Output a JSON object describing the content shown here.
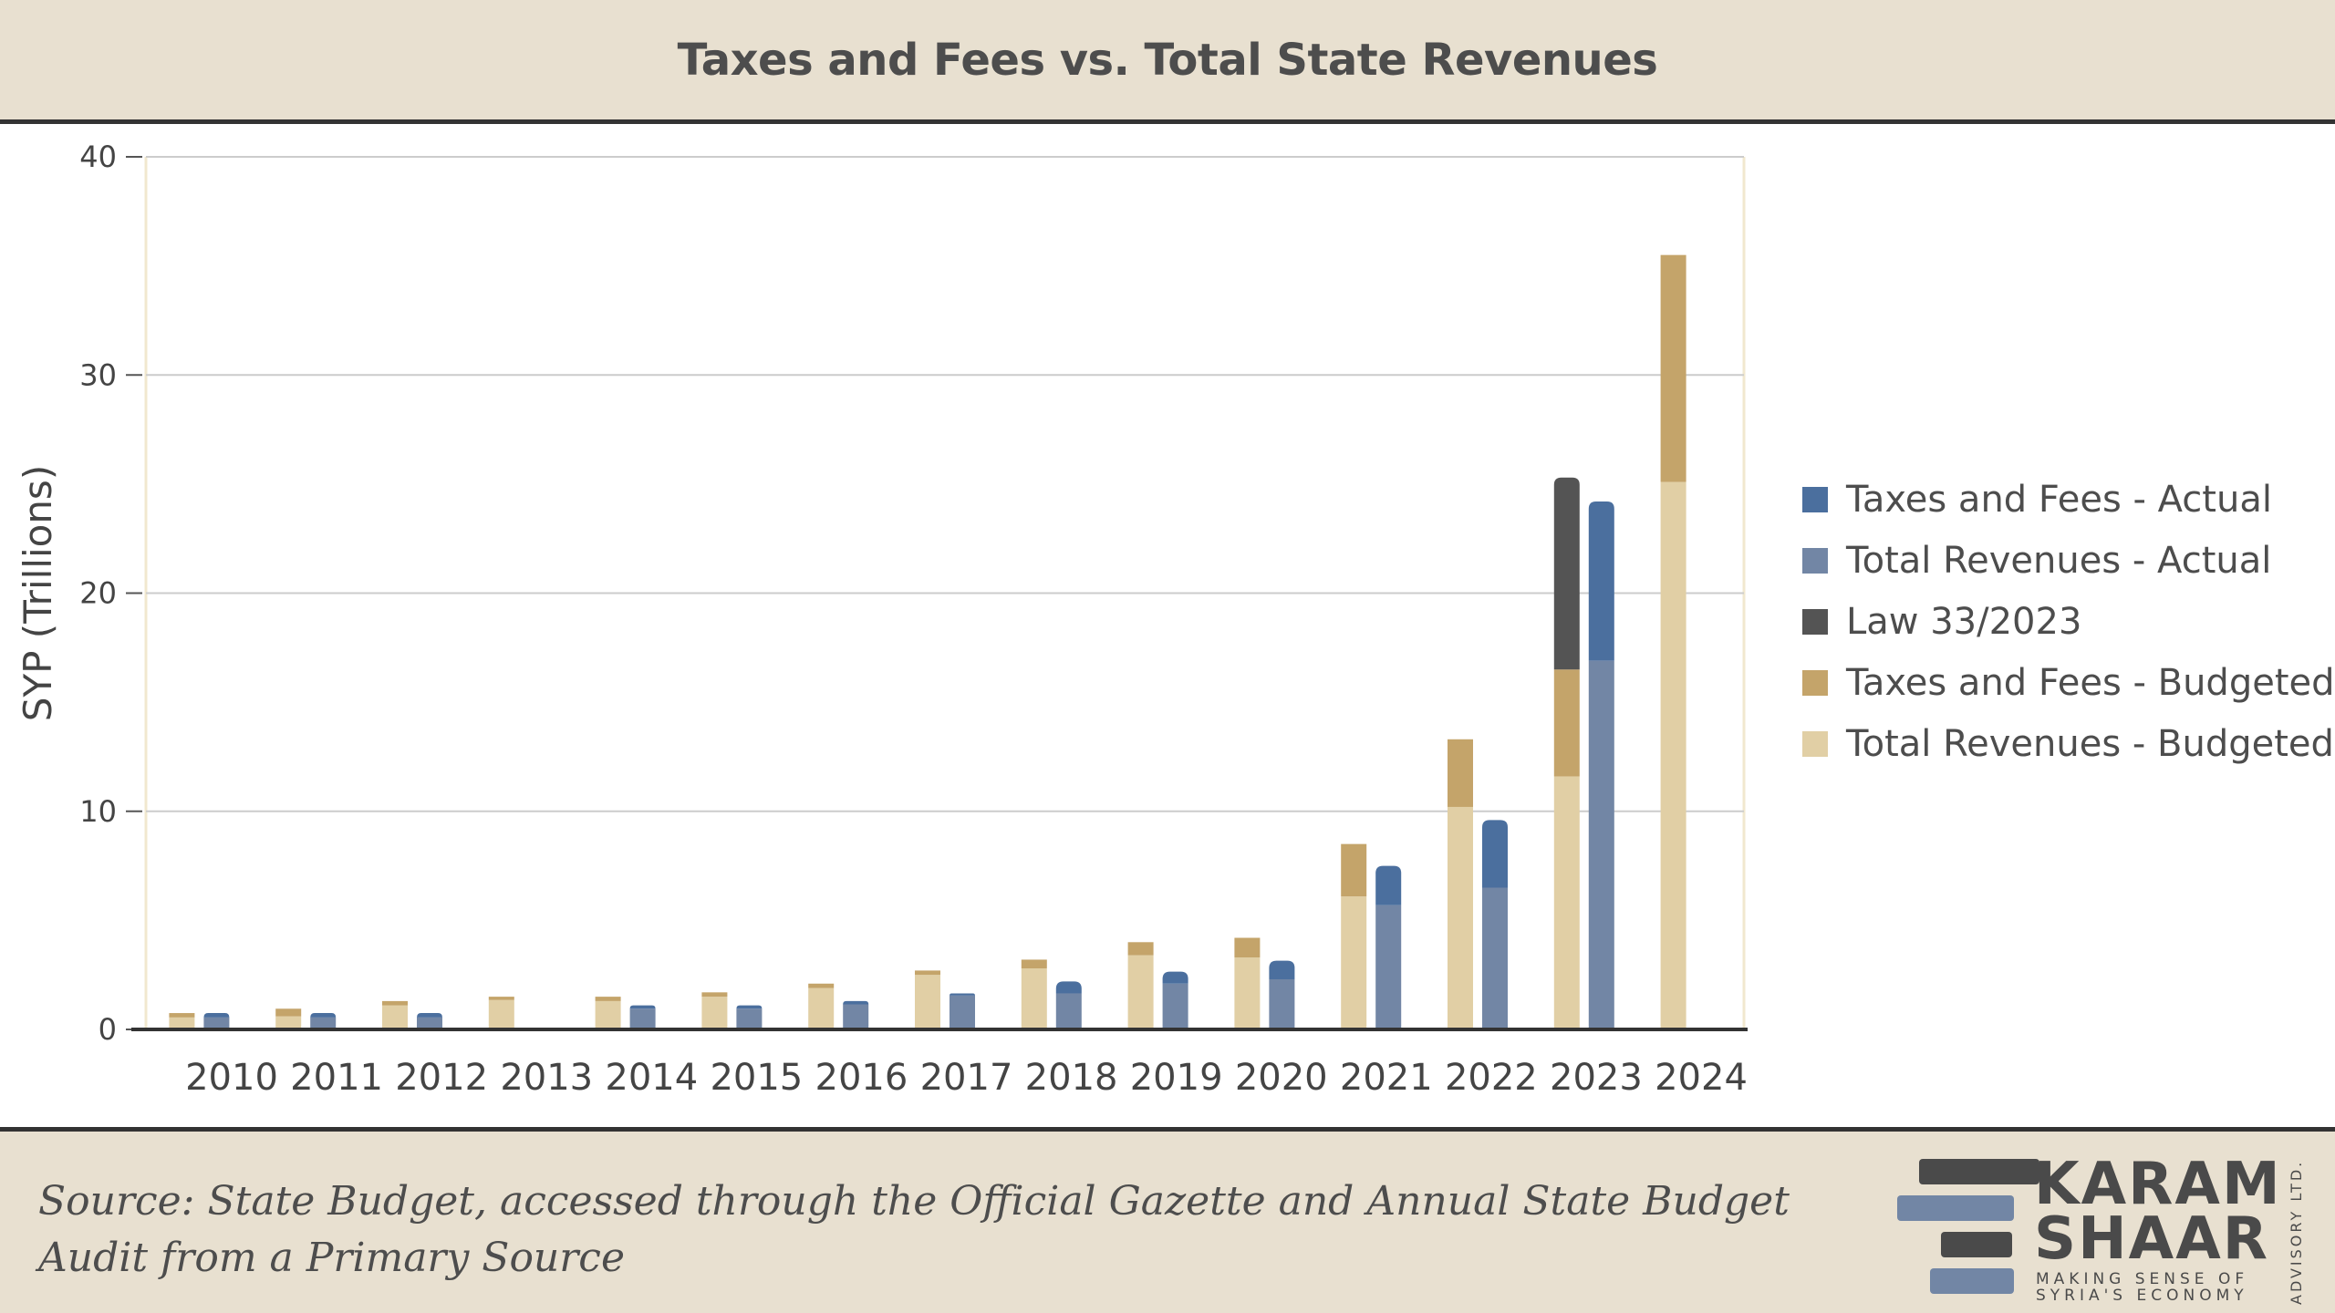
{
  "chart_data": {
    "type": "bar",
    "title": "Taxes and Fees vs. Total State Revenues",
    "ylabel": "SYP (Trillions)",
    "xlabel": "",
    "ylim": [
      0,
      40
    ],
    "yticks": [
      0,
      10,
      20,
      30,
      40
    ],
    "grid": true,
    "legend_position": "right",
    "categories": [
      "2010",
      "2011",
      "2012",
      "2013",
      "2014",
      "2015",
      "2016",
      "2017",
      "2018",
      "2019",
      "2020",
      "2021",
      "2022",
      "2023",
      "2024"
    ],
    "budgeted": {
      "total_revenues": [
        0.55,
        0.6,
        1.1,
        1.35,
        1.3,
        1.5,
        1.9,
        2.5,
        2.8,
        3.4,
        3.3,
        6.1,
        10.2,
        11.6,
        25.1
      ],
      "taxes_and_fees": [
        0.2,
        0.35,
        0.2,
        0.15,
        0.2,
        0.2,
        0.2,
        0.2,
        0.4,
        0.6,
        0.9,
        2.4,
        3.1,
        4.9,
        10.4
      ],
      "law_33_2023": [
        0,
        0,
        0,
        0,
        0,
        0,
        0,
        0,
        0,
        0,
        0,
        0,
        0,
        8.8,
        0
      ]
    },
    "actual": {
      "total_revenues": [
        0.55,
        0.55,
        0.55,
        null,
        0.95,
        0.95,
        1.15,
        1.55,
        1.65,
        2.1,
        2.3,
        5.7,
        6.5,
        16.9,
        null
      ],
      "taxes_and_fees": [
        0.2,
        0.2,
        0.2,
        null,
        0.15,
        0.15,
        0.15,
        0.1,
        0.55,
        0.55,
        0.85,
        1.8,
        3.1,
        7.3,
        null
      ]
    },
    "series": [
      {
        "name": "Taxes and Fees - Actual",
        "color": "#4b6f9e"
      },
      {
        "name": "Total Revenues - Actual",
        "color": "#7286a5"
      },
      {
        "name": "Law 33/2023",
        "color": "#545454"
      },
      {
        "name": "Taxes and Fees - Budgeted",
        "color": "#c4a46a"
      },
      {
        "name": "Total Revenues - Budgeted",
        "color": "#e1cfa5"
      }
    ]
  },
  "footer": {
    "source": "Source: State Budget, accessed through the Official Gazette and Annual State Budget Audit from a Primary Source"
  },
  "logo": {
    "line1": "KARAM",
    "line2": "SHAAR",
    "tagline1": "MAKING SENSE OF",
    "tagline2": "SYRIA'S ECONOMY",
    "vertical": "ADVISORY LTD.",
    "colors": {
      "dark": "#4a4a4a",
      "blue": "#7286a5"
    }
  }
}
